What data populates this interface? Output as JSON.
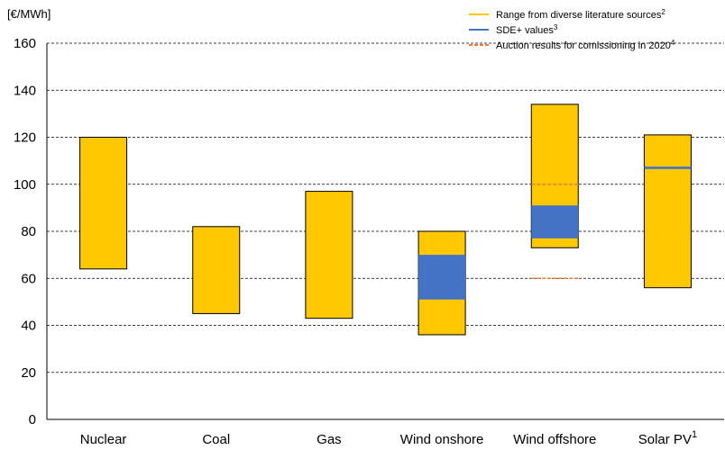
{
  "chart_data": {
    "type": "bar",
    "subtype": "floating-range",
    "ylabel": "[€/MWh]",
    "ylim": [
      0,
      160
    ],
    "yticks": [
      "0",
      "20",
      "40",
      "60",
      "80",
      "100",
      "120",
      "140",
      "160"
    ],
    "grid": "horizontal dashed",
    "categories": [
      "Nuclear",
      "Coal",
      "Gas",
      "Wind onshore",
      "Wind offshore",
      "Solar PV"
    ],
    "category_superscripts": [
      "",
      "",
      "",
      "",
      "",
      "1"
    ],
    "legend_position": "top-right",
    "series": [
      {
        "name": "Range from diverse literature sources",
        "name_superscript": "2",
        "kind": "range",
        "color": "#FFC800",
        "values": [
          [
            64,
            120
          ],
          [
            45,
            82
          ],
          [
            43,
            97
          ],
          [
            36,
            80
          ],
          [
            73,
            134
          ],
          [
            56,
            121
          ]
        ]
      },
      {
        "name": "SDE+ values",
        "name_superscript": "3",
        "kind": "range",
        "color": "#4472C4",
        "values": [
          null,
          null,
          null,
          [
            51,
            70
          ],
          [
            77,
            91
          ],
          [
            106.5,
            107.5
          ]
        ]
      },
      {
        "name": "Auction results for comissioning in 2020",
        "name_superscript": "4",
        "kind": "marker-lines",
        "color": "#ED7D31",
        "values": [
          null,
          null,
          null,
          null,
          [
            60,
            100
          ],
          null
        ]
      }
    ]
  },
  "colors": {
    "range": "#FFC800",
    "sde": "#4472C4",
    "auction": "#ED7D31",
    "grid": "#000000"
  }
}
